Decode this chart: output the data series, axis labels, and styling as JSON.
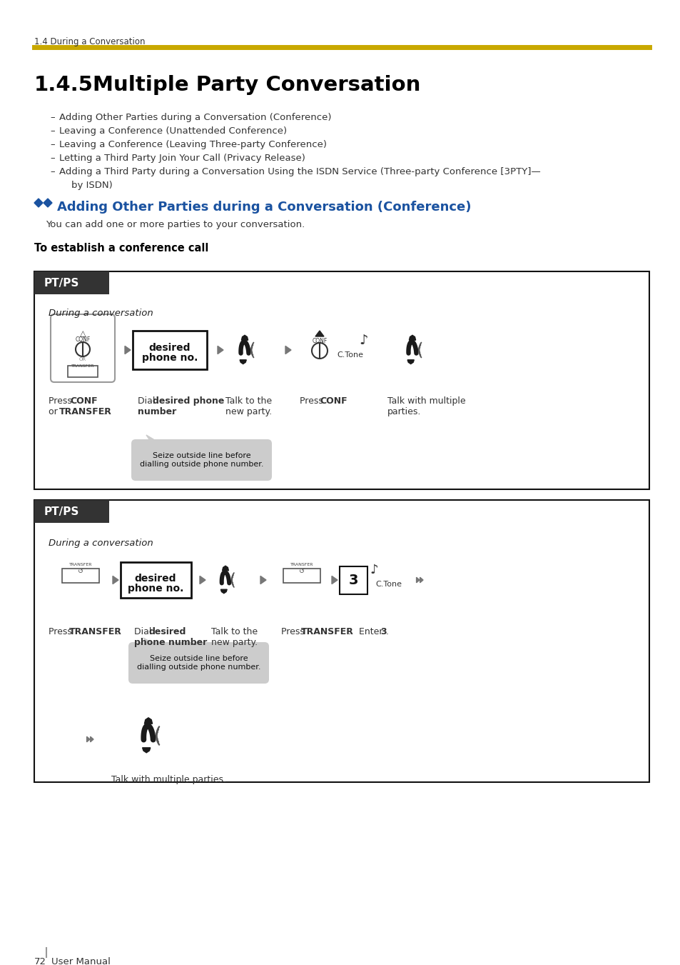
{
  "page_header": "1.4 During a Conversation",
  "header_line_color": "#C8A800",
  "title_num": "1.4.5",
  "title_text": "Multiple Party Conversation",
  "bullet_items": [
    "Adding Other Parties during a Conversation (Conference)",
    "Leaving a Conference (Unattended Conference)",
    "Leaving a Conference (Leaving Three-party Conference)",
    "Letting a Third Party Join Your Call (Privacy Release)",
    "Adding a Third Party during a Conversation Using the ISDN Service (Three-party Conference [3PTY]—",
    "by ISDN)"
  ],
  "section_title": "Adding Other Parties during a Conversation (Conference)",
  "section_title_color": "#1A52A0",
  "section_subtitle": "You can add one or more parties to your conversation.",
  "subsection_title": "To establish a conference call",
  "ptps_bg": "#333333",
  "ptps_text_color": "#FFFFFF",
  "during_label": "During a conversation",
  "desired_label1": "desired",
  "desired_label2": "phone no.",
  "lbl1_press_conf": "Press ",
  "lbl1_conf_bold": "CONF",
  "lbl1_or": "or ",
  "lbl1_transfer_bold": "TRANSFER",
  "lbl1_dot": ".",
  "lbl1_dial": "Dial ",
  "lbl1_desired_bold": "desired phone",
  "lbl1_number_bold": "number",
  "lbl1_dial2": ".",
  "lbl1_talk": "Talk to the\nnew party.",
  "lbl1_press_conf2": "Press ",
  "lbl1_conf2_bold": "CONF",
  "lbl1_dot2": ".",
  "lbl1_talk_multi": "Talk with multiple\nparties.",
  "bubble_text": "Seize outside line before\ndialling outside phone number.",
  "lbl2_press": "Press ",
  "lbl2_transfer_bold": "TRANSFER",
  "lbl2_dot": ".",
  "lbl2_dial": "Dial ",
  "lbl2_desired_bold": "desired",
  "lbl2_phone_bold": "phone number",
  "lbl2_dot2": ".",
  "lbl2_talk": "Talk to the\nnew party.",
  "lbl2_press2": "Press ",
  "lbl2_transfer2_bold": "TRANSFER",
  "lbl2_dot3": ".",
  "lbl2_enter": "Enter ",
  "lbl2_3_bold": "3",
  "lbl2_dot4": ".",
  "lbl2_talk_multi": "Talk with multiple parties.",
  "footer_72": "72",
  "footer_um": "User Manual",
  "ctone": "C.Tone",
  "bg_color": "#FFFFFF"
}
